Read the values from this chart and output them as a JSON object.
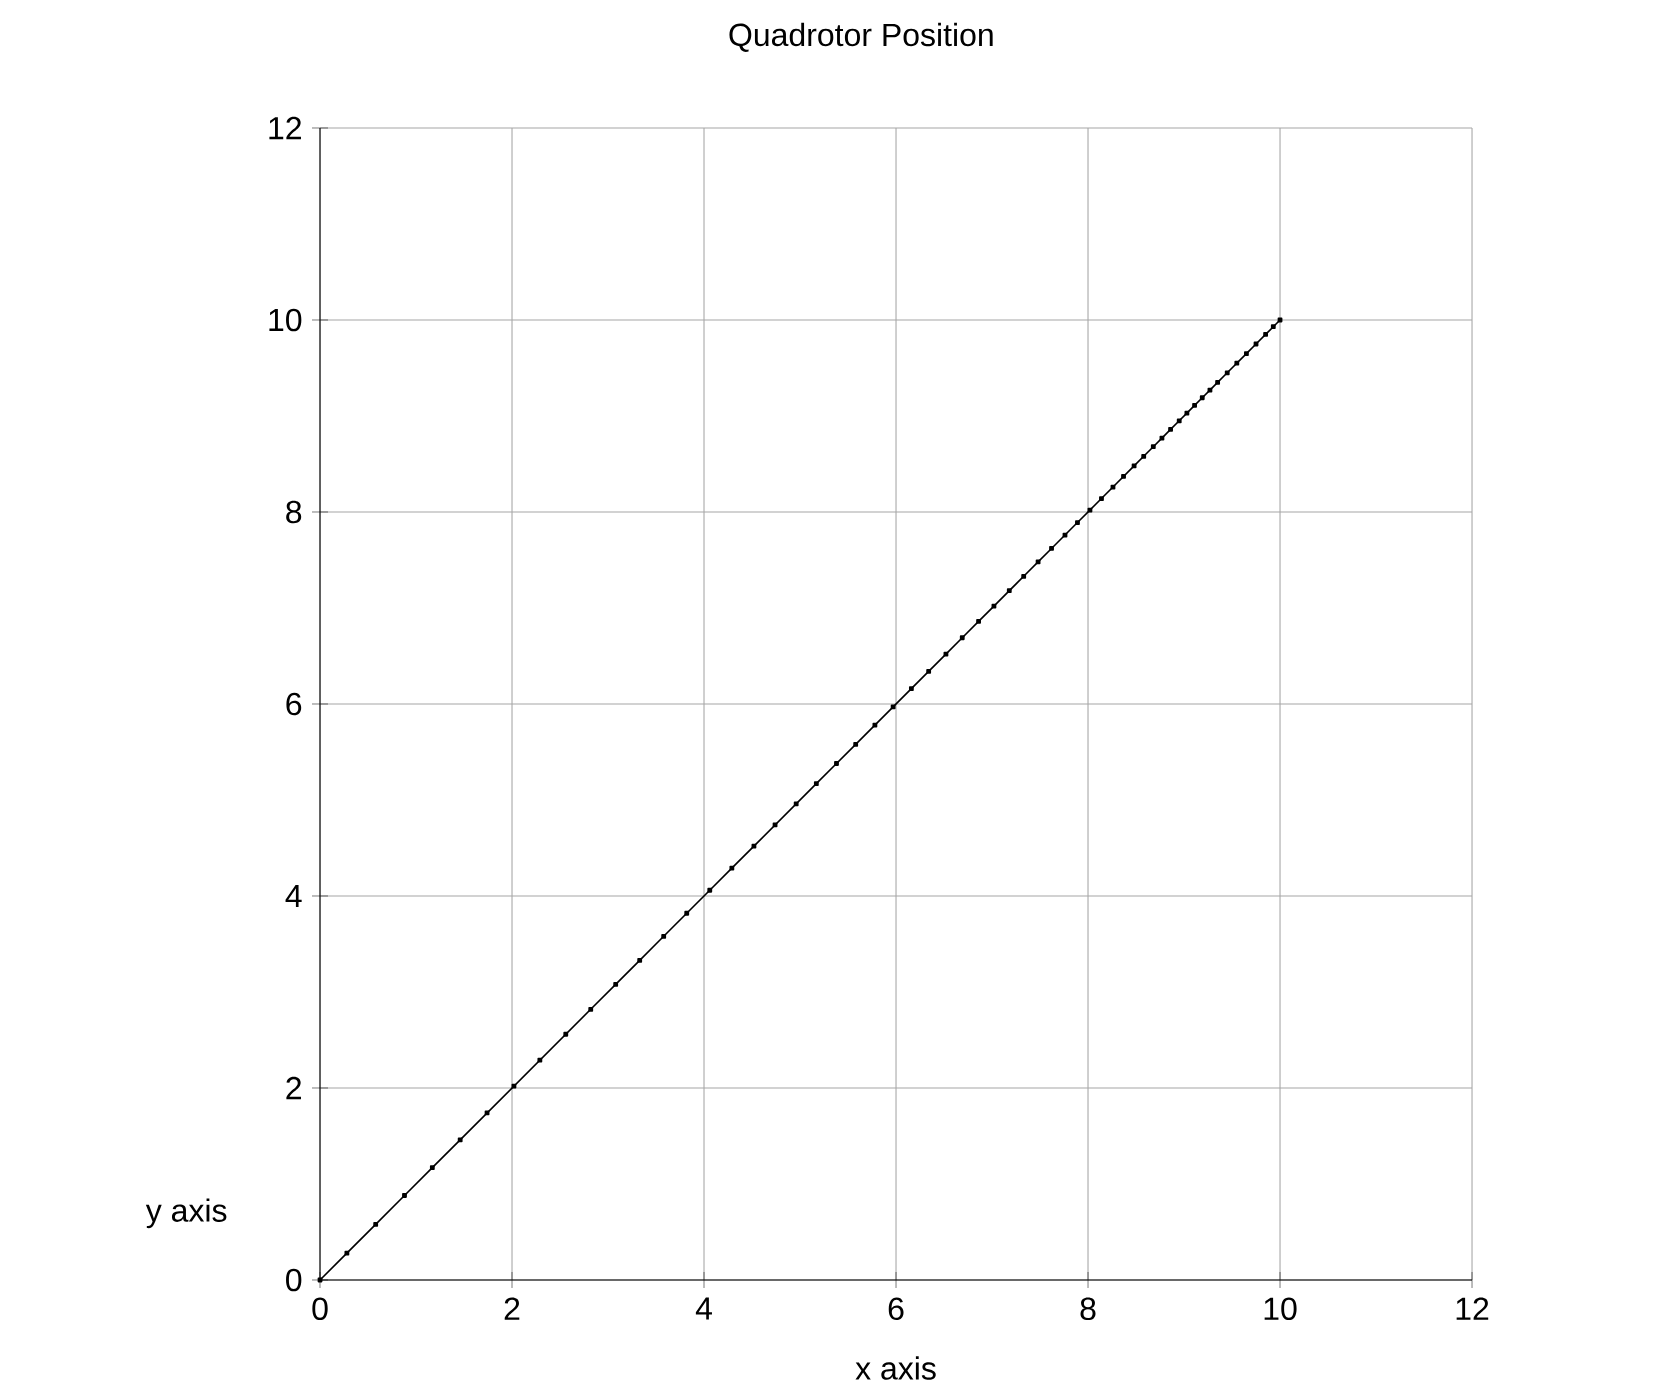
{
  "chart_data": {
    "type": "line",
    "title": "Quadrotor Position",
    "xlabel": "x axis",
    "ylabel": "y axis",
    "x": [
      0,
      0.28,
      0.58,
      0.88,
      1.17,
      1.46,
      1.74,
      2.02,
      2.29,
      2.56,
      2.82,
      3.08,
      3.33,
      3.58,
      3.82,
      4.06,
      4.29,
      4.52,
      4.74,
      4.96,
      5.17,
      5.38,
      5.58,
      5.78,
      5.97,
      6.16,
      6.34,
      6.52,
      6.69,
      6.86,
      7.02,
      7.18,
      7.33,
      7.48,
      7.62,
      7.76,
      7.89,
      8.02,
      8.14,
      8.26,
      8.37,
      8.48,
      8.58,
      8.68,
      8.77,
      8.86,
      8.95,
      9.03,
      9.11,
      9.19,
      9.27,
      9.35,
      9.45,
      9.55,
      9.65,
      9.75,
      9.85,
      9.93,
      10
    ],
    "values": [
      0,
      0.28,
      0.58,
      0.88,
      1.17,
      1.46,
      1.74,
      2.02,
      2.29,
      2.56,
      2.82,
      3.08,
      3.33,
      3.58,
      3.82,
      4.06,
      4.29,
      4.52,
      4.74,
      4.96,
      5.17,
      5.38,
      5.58,
      5.78,
      5.97,
      6.16,
      6.34,
      6.52,
      6.69,
      6.86,
      7.02,
      7.18,
      7.33,
      7.48,
      7.62,
      7.76,
      7.89,
      8.02,
      8.14,
      8.26,
      8.37,
      8.48,
      8.58,
      8.68,
      8.77,
      8.86,
      8.95,
      9.03,
      9.11,
      9.19,
      9.27,
      9.35,
      9.45,
      9.55,
      9.65,
      9.75,
      9.85,
      9.93,
      10
    ],
    "color": "#000000",
    "marker": "square",
    "xlim": [
      0,
      12
    ],
    "ylim": [
      0,
      12
    ],
    "xticks": [
      0,
      2,
      4,
      6,
      8,
      10,
      12
    ],
    "yticks": [
      0,
      2,
      4,
      6,
      8,
      10,
      12
    ],
    "grid": true
  }
}
